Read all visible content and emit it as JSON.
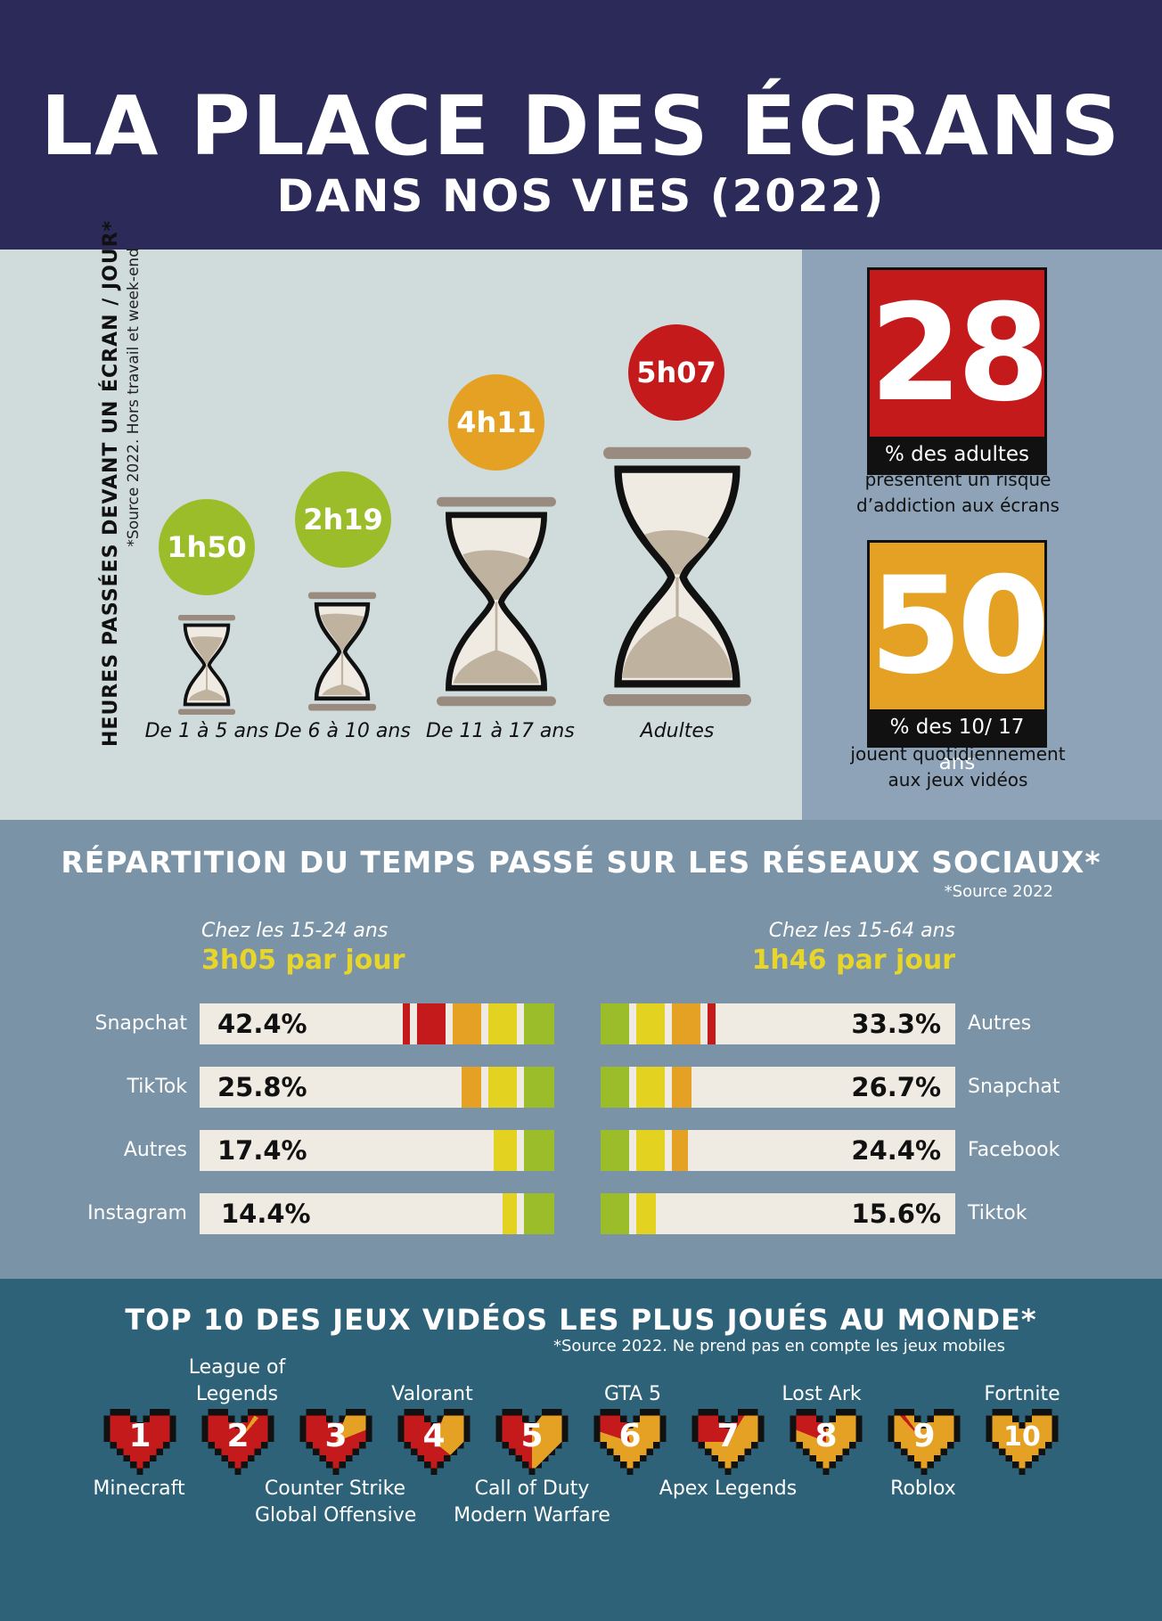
{
  "header": {
    "title": "LA PLACE DES ÉCRANS",
    "subtitle": "DANS NOS VIES (2022)"
  },
  "screen_time": {
    "axis_label": "HEURES PASSÉES DEVANT UN ÉCRAN / JOUR*",
    "axis_source": "*Source 2022. Hors travail et week-end",
    "groups": [
      {
        "label": "De 1 à 5 ans",
        "value": "1h50",
        "color": "#9cbd2a"
      },
      {
        "label": "De 6 à 10 ans",
        "value": "2h19",
        "color": "#9cbd2a"
      },
      {
        "label": "De 11 à 17 ans",
        "value": "4h11",
        "color": "#e5a123"
      },
      {
        "label": "Adultes",
        "value": "5h07",
        "color": "#c41a1c"
      }
    ]
  },
  "stats": [
    {
      "number": "28",
      "caption": "% des adultes",
      "desc1": "présentent un risque",
      "desc2": "d’addiction aux écrans",
      "color": "#c41a1c"
    },
    {
      "number": "50",
      "caption": "% des 10/ 17 ans",
      "desc1": "jouent quotidiennement",
      "desc2": "aux jeux vidéos",
      "color": "#e5a123"
    }
  ],
  "social": {
    "title": "RÉPARTITION DU TEMPS PASSÉ SUR LES RÉSEAUX SOCIAUX*",
    "source": "*Source 2022",
    "left": {
      "group": "Chez les 15-24 ans",
      "value": "3h05 par jour",
      "rows": [
        {
          "platform": "Snapchat",
          "pct": "42.4%"
        },
        {
          "platform": "TikTok",
          "pct": "25.8%"
        },
        {
          "platform": "Autres",
          "pct": "17.4%"
        },
        {
          "platform": "Instagram",
          "pct": "14.4%"
        }
      ]
    },
    "right": {
      "group": "Chez les 15-64 ans",
      "value": "1h46 par jour",
      "rows": [
        {
          "platform": "Autres",
          "pct": "33.3%"
        },
        {
          "platform": "Snapchat",
          "pct": "26.7%"
        },
        {
          "platform": "Facebook",
          "pct": "24.4%"
        },
        {
          "platform": "Tiktok",
          "pct": "15.6%"
        }
      ]
    },
    "colors": {
      "green": "#9cbd2a",
      "yellow": "#e3d21f",
      "orange": "#e5a123",
      "red": "#c41a1c",
      "track": "#efebe3"
    }
  },
  "games": {
    "title": "TOP 10 DES JEUX VIDÉOS LES PLUS JOUÉS AU MONDE*",
    "source": "*Source 2022. Ne prend pas en compte les jeux mobiles",
    "items": [
      {
        "rank": "1",
        "name": "Minecraft"
      },
      {
        "rank": "2",
        "name": "League of Legends"
      },
      {
        "rank": "3",
        "name": "Counter Strike Global Offensive"
      },
      {
        "rank": "4",
        "name": "Valorant"
      },
      {
        "rank": "5",
        "name": "Call of Duty Modern Warfare"
      },
      {
        "rank": "6",
        "name": "GTA 5"
      },
      {
        "rank": "7",
        "name": "Apex Legends"
      },
      {
        "rank": "8",
        "name": "Lost Ark"
      },
      {
        "rank": "9",
        "name": "Roblox"
      },
      {
        "rank": "10",
        "name": "Fortnite"
      }
    ],
    "labels": {
      "lol1": "League of",
      "lol2": "Legends",
      "cs1": "Counter Strike",
      "cs2": "Global Offensive",
      "cod1": "Call of Duty",
      "cod2": "Modern Warfare"
    }
  }
}
